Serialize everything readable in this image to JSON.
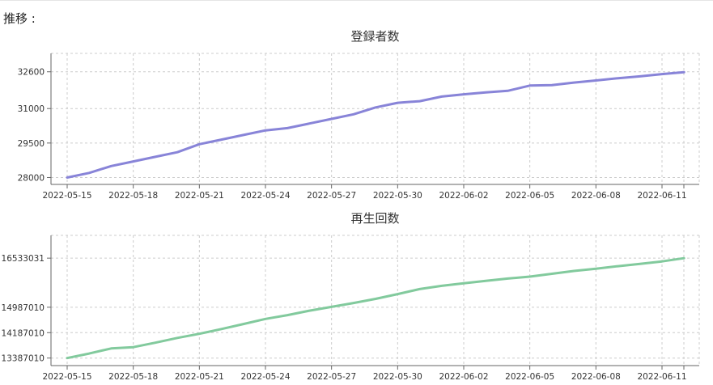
{
  "heading": "推移 :",
  "chart_data": [
    {
      "type": "line",
      "title": "登録者数",
      "color": "#8884d8",
      "x_ticks": [
        "2022-05-15",
        "2022-05-18",
        "2022-05-21",
        "2022-05-24",
        "2022-05-27",
        "2022-05-30",
        "2022-06-02",
        "2022-06-05",
        "2022-06-08",
        "2022-06-11"
      ],
      "y_ticks": [
        28000,
        29500,
        31000,
        32600
      ],
      "ylim": [
        27700,
        33400
      ],
      "x": [
        "2022-05-15",
        "2022-05-16",
        "2022-05-17",
        "2022-05-18",
        "2022-05-19",
        "2022-05-20",
        "2022-05-21",
        "2022-05-22",
        "2022-05-23",
        "2022-05-24",
        "2022-05-25",
        "2022-05-26",
        "2022-05-27",
        "2022-05-28",
        "2022-05-29",
        "2022-05-30",
        "2022-05-31",
        "2022-06-01",
        "2022-06-02",
        "2022-06-03",
        "2022-06-04",
        "2022-06-05",
        "2022-06-06",
        "2022-06-07",
        "2022-06-08",
        "2022-06-09",
        "2022-06-10",
        "2022-06-11",
        "2022-06-12"
      ],
      "series": [
        {
          "values": [
            28000,
            28200,
            28500,
            28700,
            28900,
            29100,
            29450,
            29650,
            29850,
            30050,
            30150,
            30350,
            30550,
            30750,
            31050,
            31250,
            31320,
            31520,
            31620,
            31700,
            31770,
            32000,
            32020,
            32130,
            32220,
            32320,
            32400,
            32500,
            32580
          ]
        }
      ],
      "grid": true
    },
    {
      "type": "line",
      "title": "再生回数",
      "color": "#82ca9d",
      "x_ticks": [
        "2022-05-15",
        "2022-05-18",
        "2022-05-21",
        "2022-05-24",
        "2022-05-27",
        "2022-05-30",
        "2022-06-02",
        "2022-06-05",
        "2022-06-08",
        "2022-06-11"
      ],
      "y_ticks": [
        13387010,
        14187010,
        14987010,
        16533031
      ],
      "ylim": [
        13150000,
        17250000
      ],
      "x": [
        "2022-05-15",
        "2022-05-16",
        "2022-05-17",
        "2022-05-18",
        "2022-05-19",
        "2022-05-20",
        "2022-05-21",
        "2022-05-22",
        "2022-05-23",
        "2022-05-24",
        "2022-05-25",
        "2022-05-26",
        "2022-05-27",
        "2022-05-28",
        "2022-05-29",
        "2022-05-30",
        "2022-05-31",
        "2022-06-01",
        "2022-06-02",
        "2022-06-03",
        "2022-06-04",
        "2022-06-05",
        "2022-06-06",
        "2022-06-07",
        "2022-06-08",
        "2022-06-09",
        "2022-06-10",
        "2022-06-11",
        "2022-06-12"
      ],
      "series": [
        {
          "values": [
            13387010,
            13530000,
            13690000,
            13730000,
            13870000,
            14020000,
            14150000,
            14300000,
            14460000,
            14620000,
            14740000,
            14880000,
            15000000,
            15120000,
            15250000,
            15400000,
            15560000,
            15660000,
            15740000,
            15820000,
            15890000,
            15950000,
            16040000,
            16130000,
            16200000,
            16280000,
            16350000,
            16430000,
            16533031
          ]
        }
      ],
      "grid": true
    }
  ]
}
